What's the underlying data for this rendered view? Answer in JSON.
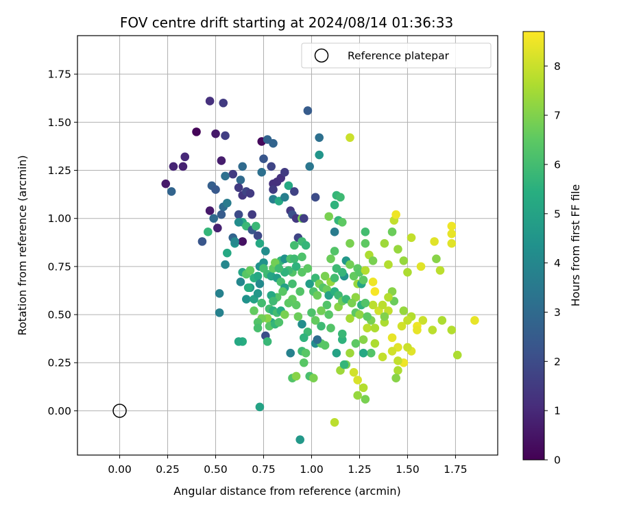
{
  "chart_data": {
    "type": "scatter",
    "title": "FOV centre drift starting at 2024/08/14 01:36:33",
    "xlabel": "Angular distance from reference (arcmin)",
    "ylabel": "Rotation from reference (arcmin)",
    "xlim": [
      -0.22,
      1.97
    ],
    "ylim": [
      -0.23,
      1.95
    ],
    "xticks": [
      "0.00",
      "0.25",
      "0.50",
      "0.75",
      "1.00",
      "1.25",
      "1.50",
      "1.75"
    ],
    "xtick_values": [
      0,
      0.25,
      0.5,
      0.75,
      1.0,
      1.25,
      1.5,
      1.75
    ],
    "yticks": [
      "0.00",
      "0.25",
      "0.50",
      "0.75",
      "1.00",
      "1.25",
      "1.50",
      "1.75"
    ],
    "ytick_values": [
      0,
      0.25,
      0.5,
      0.75,
      1.0,
      1.25,
      1.5,
      1.75
    ],
    "grid": true,
    "colormap": "viridis",
    "colorbar": {
      "label": "Hours from first FF file",
      "range": [
        0,
        8.7
      ],
      "ticks": [
        "0",
        "1",
        "2",
        "3",
        "4",
        "5",
        "6",
        "7",
        "8"
      ],
      "tick_values": [
        0,
        1,
        2,
        3,
        4,
        5,
        6,
        7,
        8
      ]
    },
    "legend": {
      "label": "Reference platepar",
      "placement": "top-right",
      "marker": "open-circle"
    },
    "reference_point": {
      "x": 0,
      "y": 0
    },
    "points": [
      [
        0.4,
        1.45,
        0.1
      ],
      [
        0.47,
        1.61,
        1.2
      ],
      [
        0.54,
        1.6,
        1.5
      ],
      [
        0.55,
        1.43,
        1.6
      ],
      [
        0.5,
        1.44,
        0.6
      ],
      [
        0.24,
        1.18,
        0.6
      ],
      [
        0.28,
        1.27,
        0.9
      ],
      [
        0.33,
        1.27,
        0.8
      ],
      [
        0.34,
        1.32,
        1.0
      ],
      [
        0.27,
        1.14,
        2.8
      ],
      [
        0.48,
        1.17,
        2.6
      ],
      [
        0.5,
        1.15,
        2.4
      ],
      [
        0.47,
        1.04,
        0.6
      ],
      [
        0.53,
        1.3,
        0.7
      ],
      [
        0.59,
        1.23,
        1.5
      ],
      [
        0.55,
        1.22,
        3.2
      ],
      [
        0.54,
        1.06,
        3.1
      ],
      [
        0.53,
        1.02,
        2.5
      ],
      [
        0.49,
        1.0,
        3.0
      ],
      [
        0.51,
        0.95,
        0.8
      ],
      [
        0.43,
        0.88,
        2.3
      ],
      [
        0.46,
        0.93,
        5.7
      ],
      [
        0.56,
        1.08,
        3.6
      ],
      [
        0.63,
        1.2,
        3.0
      ],
      [
        0.64,
        1.27,
        3.0
      ],
      [
        0.62,
        1.16,
        1.5
      ],
      [
        0.64,
        1.12,
        1.4
      ],
      [
        0.66,
        1.14,
        1.8
      ],
      [
        0.68,
        1.13,
        1.5
      ],
      [
        0.62,
        1.02,
        2.0
      ],
      [
        0.64,
        0.98,
        5.2
      ],
      [
        0.66,
        0.96,
        5.8
      ],
      [
        0.69,
        1.02,
        1.5
      ],
      [
        0.59,
        0.9,
        2.8
      ],
      [
        0.6,
        0.87,
        4.5
      ],
      [
        0.64,
        0.88,
        0.4
      ],
      [
        0.69,
        0.94,
        2.4
      ],
      [
        0.71,
        0.96,
        5.8
      ],
      [
        0.72,
        0.91,
        1.9
      ],
      [
        0.73,
        0.87,
        5.2
      ],
      [
        0.74,
        1.4,
        0.2
      ],
      [
        0.74,
        1.24,
        3.2
      ],
      [
        0.75,
        1.31,
        2.3
      ],
      [
        0.77,
        1.41,
        2.8
      ],
      [
        0.8,
        1.39,
        2.8
      ],
      [
        0.79,
        1.27,
        1.8
      ],
      [
        0.8,
        1.18,
        1.2
      ],
      [
        0.82,
        1.19,
        1.2
      ],
      [
        0.8,
        1.15,
        1.5
      ],
      [
        0.84,
        1.21,
        1.2
      ],
      [
        0.86,
        1.24,
        1.5
      ],
      [
        0.8,
        1.1,
        3.7
      ],
      [
        0.83,
        1.09,
        5.2
      ],
      [
        0.86,
        1.11,
        3.7
      ],
      [
        0.88,
        1.17,
        5.2
      ],
      [
        0.91,
        1.14,
        1.7
      ],
      [
        0.89,
        1.04,
        1.4
      ],
      [
        0.9,
        1.02,
        2.2
      ],
      [
        0.92,
        1.0,
        1.4
      ],
      [
        0.95,
        1.0,
        6.8
      ],
      [
        0.96,
        1.0,
        1.6
      ],
      [
        0.93,
        0.9,
        1.8
      ],
      [
        0.95,
        0.88,
        5.9
      ],
      [
        0.91,
        0.86,
        6.0
      ],
      [
        0.97,
        0.86,
        5.7
      ],
      [
        0.98,
        1.56,
        2.5
      ],
      [
        0.99,
        1.27,
        3.4
      ],
      [
        1.02,
        1.11,
        2.0
      ],
      [
        1.04,
        1.42,
        3.2
      ],
      [
        1.04,
        1.33,
        4.5
      ],
      [
        1.09,
        1.01,
        6.9
      ],
      [
        1.12,
        0.93,
        3.6
      ],
      [
        1.13,
        1.12,
        5.7
      ],
      [
        1.15,
        1.11,
        5.9
      ],
      [
        1.12,
        1.07,
        5.6
      ],
      [
        1.14,
        0.99,
        5.7
      ],
      [
        1.16,
        0.98,
        6.5
      ],
      [
        1.2,
        1.42,
        8.0
      ],
      [
        1.2,
        0.87,
        6.9
      ],
      [
        1.24,
        0.74,
        6.5
      ],
      [
        1.28,
        0.93,
        6.0
      ],
      [
        1.28,
        0.87,
        6.5
      ],
      [
        1.3,
        0.81,
        7.6
      ],
      [
        1.32,
        0.78,
        6.9
      ],
      [
        1.38,
        0.87,
        7.4
      ],
      [
        1.42,
        0.93,
        6.7
      ],
      [
        1.43,
        0.99,
        7.9
      ],
      [
        1.44,
        1.02,
        8.5
      ],
      [
        1.4,
        0.76,
        7.7
      ],
      [
        1.45,
        0.84,
        7.3
      ],
      [
        1.48,
        0.78,
        7.3
      ],
      [
        1.52,
        0.9,
        7.9
      ],
      [
        1.5,
        0.72,
        7.6
      ],
      [
        1.57,
        0.75,
        8.3
      ],
      [
        1.64,
        0.88,
        8.3
      ],
      [
        1.65,
        0.79,
        7.1
      ],
      [
        1.67,
        0.73,
        7.8
      ],
      [
        1.73,
        0.96,
        8.5
      ],
      [
        1.73,
        0.92,
        8.4
      ],
      [
        1.73,
        0.87,
        8.3
      ],
      [
        1.85,
        0.47,
        8.4
      ],
      [
        1.76,
        0.29,
        7.6
      ],
      [
        1.73,
        0.42,
        7.7
      ],
      [
        1.68,
        0.47,
        7.6
      ],
      [
        1.63,
        0.42,
        7.8
      ],
      [
        1.58,
        0.47,
        8.0
      ],
      [
        1.55,
        0.44,
        8.5
      ],
      [
        1.52,
        0.49,
        7.7
      ],
      [
        1.55,
        0.42,
        8.4
      ],
      [
        1.5,
        0.47,
        7.9
      ],
      [
        1.48,
        0.52,
        7.3
      ],
      [
        1.47,
        0.44,
        8.1
      ],
      [
        1.52,
        0.31,
        8.3
      ],
      [
        1.5,
        0.33,
        8.0
      ],
      [
        1.48,
        0.25,
        8.5
      ],
      [
        1.45,
        0.26,
        7.9
      ],
      [
        1.45,
        0.33,
        8.3
      ],
      [
        1.42,
        0.38,
        8.4
      ],
      [
        1.42,
        0.31,
        8.1
      ],
      [
        1.45,
        0.21,
        7.6
      ],
      [
        1.44,
        0.17,
        7.1
      ],
      [
        1.4,
        0.52,
        7.9
      ],
      [
        1.42,
        0.62,
        7.1
      ],
      [
        1.43,
        0.57,
        6.7
      ],
      [
        1.38,
        0.46,
        7.6
      ],
      [
        1.35,
        0.52,
        8.1
      ],
      [
        1.33,
        0.62,
        8.6
      ],
      [
        1.32,
        0.67,
        8.5
      ],
      [
        1.32,
        0.55,
        7.8
      ],
      [
        1.31,
        0.47,
        6.9
      ],
      [
        1.29,
        0.43,
        7.8
      ],
      [
        1.27,
        0.37,
        7.1
      ],
      [
        1.33,
        0.35,
        7.6
      ],
      [
        1.37,
        0.28,
        7.9
      ],
      [
        1.31,
        0.3,
        6.3
      ],
      [
        1.27,
        0.3,
        5.2
      ],
      [
        1.23,
        0.35,
        6.5
      ],
      [
        1.2,
        0.3,
        7.4
      ],
      [
        1.18,
        0.24,
        6.9
      ],
      [
        1.22,
        0.2,
        8.1
      ],
      [
        1.24,
        0.16,
        8.2
      ],
      [
        1.27,
        0.12,
        7.7
      ],
      [
        1.28,
        0.06,
        6.9
      ],
      [
        1.24,
        0.08,
        7.3
      ],
      [
        1.15,
        0.21,
        7.4
      ],
      [
        1.12,
        -0.06,
        7.8
      ],
      [
        1.17,
        0.24,
        5.7
      ],
      [
        1.16,
        0.37,
        5.6
      ],
      [
        1.16,
        0.4,
        5.8
      ],
      [
        1.13,
        0.3,
        5.0
      ],
      [
        1.1,
        0.43,
        6.3
      ],
      [
        1.09,
        0.5,
        6.4
      ],
      [
        1.08,
        0.55,
        6.3
      ],
      [
        1.05,
        0.52,
        6.8
      ],
      [
        1.05,
        0.44,
        5.9
      ],
      [
        1.02,
        0.47,
        6.6
      ],
      [
        1.0,
        0.51,
        6.2
      ],
      [
        0.98,
        0.41,
        5.9
      ],
      [
        0.96,
        0.38,
        5.6
      ],
      [
        0.95,
        0.31,
        5.9
      ],
      [
        0.97,
        0.3,
        6.4
      ],
      [
        0.96,
        0.25,
        6.4
      ],
      [
        0.99,
        0.18,
        6.1
      ],
      [
        1.01,
        0.17,
        6.9
      ],
      [
        1.02,
        0.35,
        4.2
      ],
      [
        1.05,
        0.35,
        6.4
      ],
      [
        1.07,
        0.34,
        6.4
      ],
      [
        1.03,
        0.37,
        3.1
      ],
      [
        0.95,
        0.45,
        4.2
      ],
      [
        0.93,
        0.49,
        6.7
      ],
      [
        0.92,
        0.55,
        6.5
      ],
      [
        0.9,
        0.58,
        6.6
      ],
      [
        0.94,
        0.62,
        6.3
      ],
      [
        0.9,
        0.66,
        6.0
      ],
      [
        0.9,
        0.72,
        6.3
      ],
      [
        0.88,
        0.73,
        5.9
      ],
      [
        0.86,
        0.72,
        5.6
      ],
      [
        0.84,
        0.78,
        5.7
      ],
      [
        0.86,
        0.79,
        4.4
      ],
      [
        0.89,
        0.79,
        6.2
      ],
      [
        0.91,
        0.79,
        5.9
      ],
      [
        0.92,
        0.75,
        5.6
      ],
      [
        0.95,
        0.72,
        6.4
      ],
      [
        0.98,
        0.74,
        6.5
      ],
      [
        0.99,
        0.66,
        4.8
      ],
      [
        1.01,
        0.62,
        6.2
      ],
      [
        1.03,
        0.6,
        6.7
      ],
      [
        1.02,
        0.69,
        5.8
      ],
      [
        1.04,
        0.66,
        6.9
      ],
      [
        1.06,
        0.64,
        6.3
      ],
      [
        1.07,
        0.7,
        6.9
      ],
      [
        1.08,
        0.63,
        6.7
      ],
      [
        1.09,
        0.6,
        4.9
      ],
      [
        1.1,
        0.67,
        7.3
      ],
      [
        1.12,
        0.69,
        6.0
      ],
      [
        1.12,
        0.62,
        5.5
      ],
      [
        1.14,
        0.6,
        5.9
      ],
      [
        1.14,
        0.54,
        7.1
      ],
      [
        1.16,
        0.57,
        6.7
      ],
      [
        1.18,
        0.58,
        5.8
      ],
      [
        1.17,
        0.7,
        4.4
      ],
      [
        1.16,
        0.72,
        5.7
      ],
      [
        1.18,
        0.78,
        4.6
      ],
      [
        1.2,
        0.76,
        6.8
      ],
      [
        1.22,
        0.7,
        6.6
      ],
      [
        1.24,
        0.66,
        7.3
      ],
      [
        1.26,
        0.66,
        5.1
      ],
      [
        1.25,
        0.72,
        6.4
      ],
      [
        1.28,
        0.73,
        7.7
      ],
      [
        1.27,
        0.68,
        6.5
      ],
      [
        1.23,
        0.59,
        7.2
      ],
      [
        1.21,
        0.56,
        6.9
      ],
      [
        1.2,
        0.48,
        7.5
      ],
      [
        1.23,
        0.51,
        6.5
      ],
      [
        1.25,
        0.5,
        7.2
      ],
      [
        1.26,
        0.55,
        5.6
      ],
      [
        1.28,
        0.56,
        6.3
      ],
      [
        1.29,
        0.49,
        6.5
      ],
      [
        1.33,
        0.43,
        7.6
      ],
      [
        1.38,
        0.49,
        7.0
      ],
      [
        1.37,
        0.55,
        7.8
      ],
      [
        1.4,
        0.59,
        7.7
      ],
      [
        0.64,
        0.72,
        5.1
      ],
      [
        0.66,
        0.71,
        6.4
      ],
      [
        0.68,
        0.73,
        6.6
      ],
      [
        0.7,
        0.69,
        5.5
      ],
      [
        0.72,
        0.7,
        5.2
      ],
      [
        0.73,
        0.75,
        4.4
      ],
      [
        0.75,
        0.77,
        4.4
      ],
      [
        0.76,
        0.83,
        4.2
      ],
      [
        0.75,
        0.74,
        6.0
      ],
      [
        0.77,
        0.71,
        5.9
      ],
      [
        0.79,
        0.7,
        5.1
      ],
      [
        0.8,
        0.74,
        6.5
      ],
      [
        0.81,
        0.77,
        6.8
      ],
      [
        0.83,
        0.74,
        5.9
      ],
      [
        0.82,
        0.69,
        4.8
      ],
      [
        0.84,
        0.67,
        6.1
      ],
      [
        0.86,
        0.64,
        4.9
      ],
      [
        0.85,
        0.62,
        6.4
      ],
      [
        0.82,
        0.59,
        6.3
      ],
      [
        0.79,
        0.6,
        5.2
      ],
      [
        0.8,
        0.57,
        5.9
      ],
      [
        0.78,
        0.53,
        6.0
      ],
      [
        0.8,
        0.52,
        5.5
      ],
      [
        0.82,
        0.51,
        6.0
      ],
      [
        0.84,
        0.52,
        5.4
      ],
      [
        0.86,
        0.5,
        6.9
      ],
      [
        0.88,
        0.56,
        6.5
      ],
      [
        0.79,
        0.46,
        4.9
      ],
      [
        0.77,
        0.48,
        7.1
      ],
      [
        0.74,
        0.48,
        6.8
      ],
      [
        0.72,
        0.46,
        6.3
      ],
      [
        0.72,
        0.43,
        6.1
      ],
      [
        0.78,
        0.44,
        6.4
      ],
      [
        0.81,
        0.45,
        5.7
      ],
      [
        0.83,
        0.46,
        6.2
      ],
      [
        0.76,
        0.39,
        2.0
      ],
      [
        0.77,
        0.36,
        5.8
      ],
      [
        0.64,
        0.36,
        5.4
      ],
      [
        0.62,
        0.36,
        5.2
      ],
      [
        0.66,
        0.58,
        4.4
      ],
      [
        0.68,
        0.64,
        4.7
      ],
      [
        0.7,
        0.58,
        5.0
      ],
      [
        0.72,
        0.61,
        4.6
      ],
      [
        0.74,
        0.56,
        6.0
      ],
      [
        0.73,
        0.66,
        4.1
      ],
      [
        0.7,
        0.52,
        6.6
      ],
      [
        0.63,
        0.67,
        4.0
      ],
      [
        0.67,
        0.64,
        5.4
      ],
      [
        0.52,
        0.61,
        3.8
      ],
      [
        0.52,
        0.51,
        3.8
      ],
      [
        0.55,
        0.76,
        4.0
      ],
      [
        0.56,
        0.82,
        5.2
      ],
      [
        0.6,
        0.88,
        4.0
      ],
      [
        0.62,
        0.98,
        4.2
      ],
      [
        0.89,
        0.3,
        3.8
      ],
      [
        0.9,
        0.17,
        6.3
      ],
      [
        0.92,
        0.18,
        7.1
      ],
      [
        0.94,
        -0.15,
        4.6
      ],
      [
        0.73,
        0.02,
        5.0
      ],
      [
        1.1,
        0.79,
        6.7
      ],
      [
        1.12,
        0.83,
        6.3
      ],
      [
        1.13,
        0.74,
        5.9
      ],
      [
        0.95,
        0.8,
        6.2
      ]
    ]
  }
}
